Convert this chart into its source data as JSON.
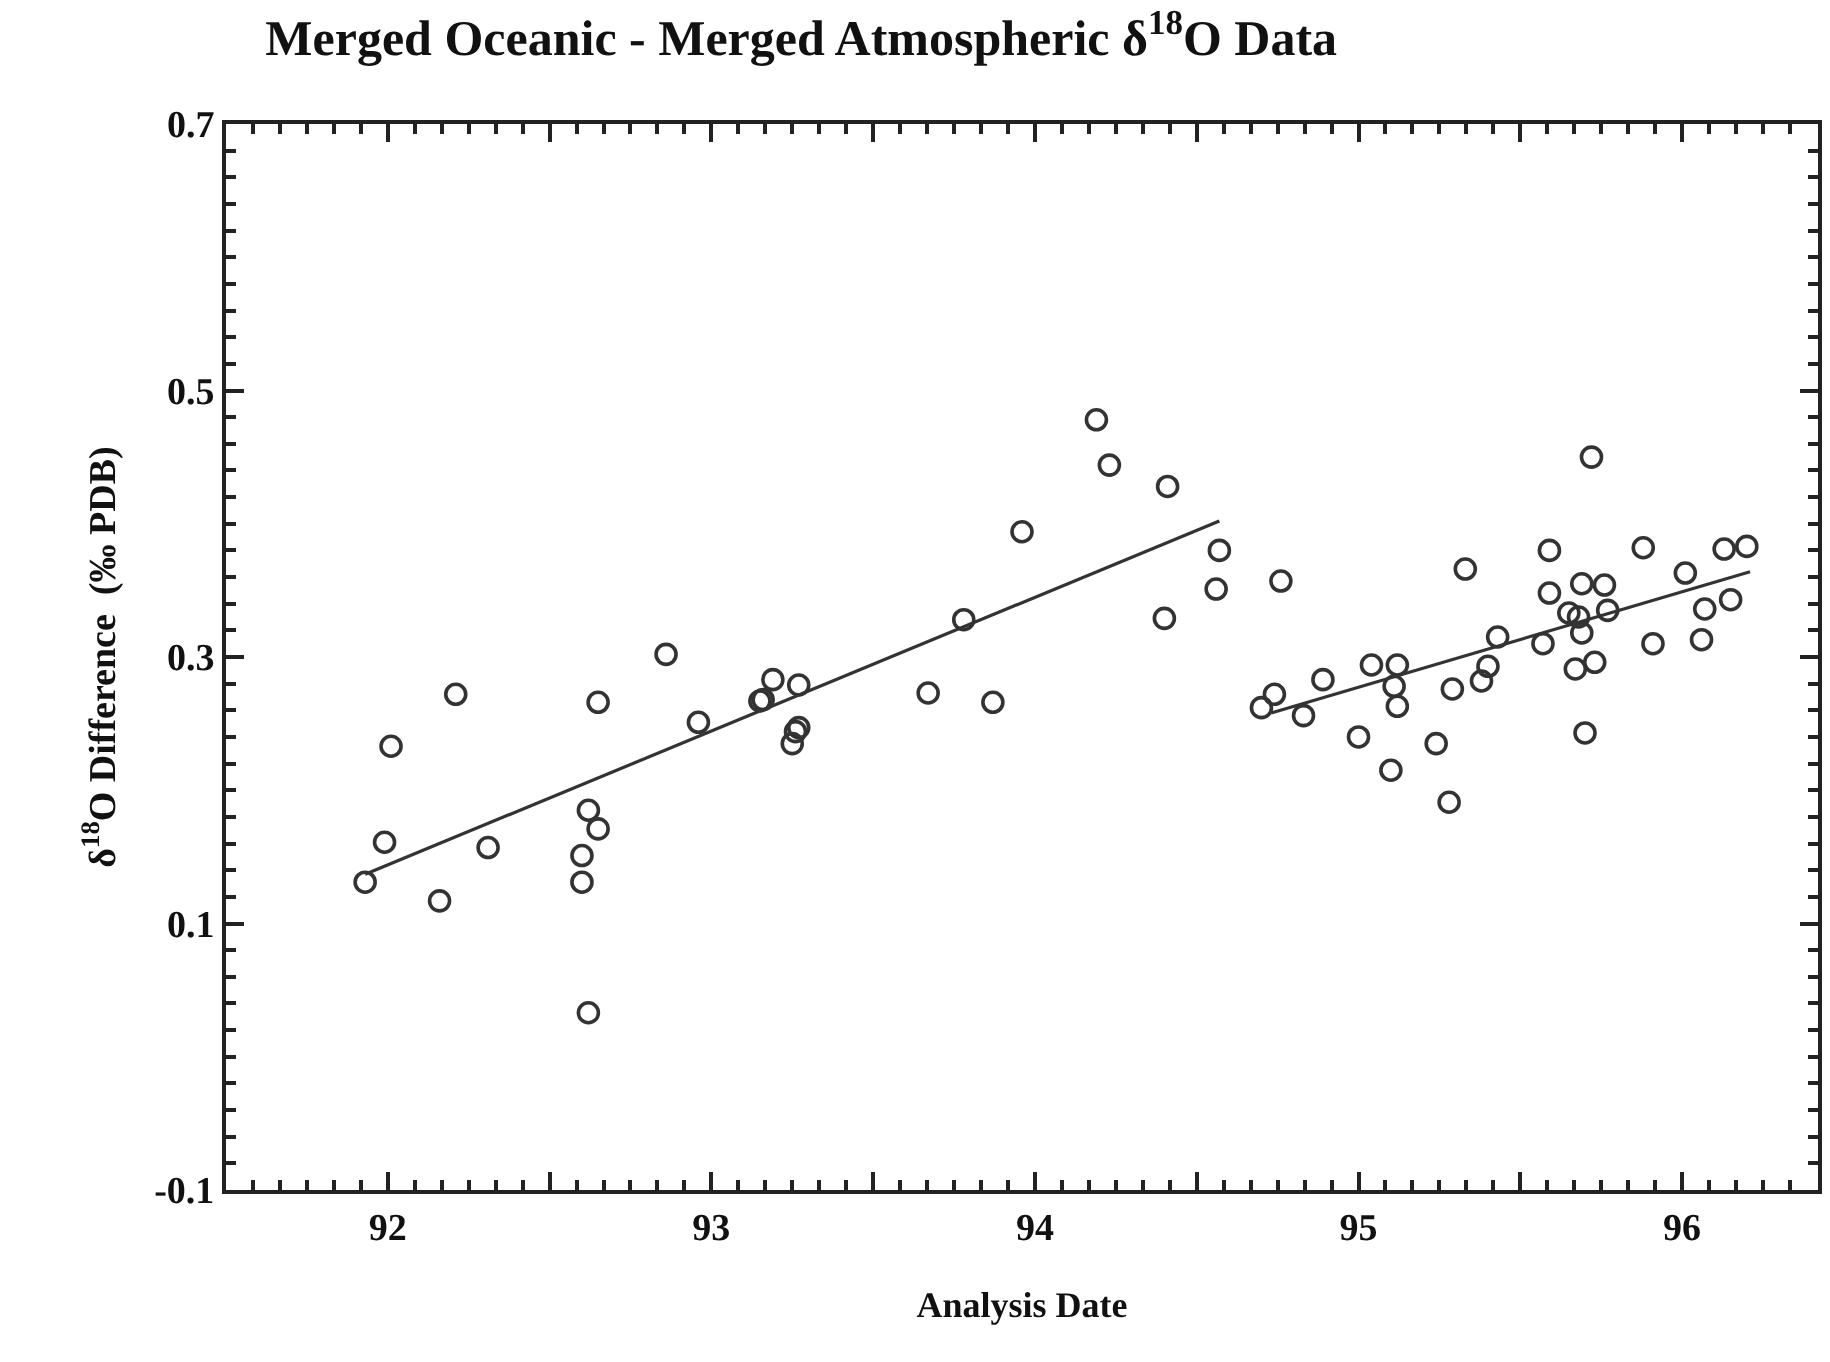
{
  "chart_data": {
    "type": "scatter",
    "title": "Merged Oceanic - Merged Atmospheric δ$^{18}$O Data",
    "xlabel": "Analysis Date",
    "ylabel": "δ$^{18}$O Difference  (‰ PDB)",
    "xlim": [
      92,
      96.92
    ],
    "ylim": [
      -0.1,
      0.7
    ],
    "xticks": [
      {
        "value": 92.5,
        "label": "92"
      },
      {
        "value": 93,
        "label": null
      },
      {
        "value": 93.5,
        "label": "93"
      },
      {
        "value": 94,
        "label": null
      },
      {
        "value": 94.5,
        "label": "94"
      },
      {
        "value": 95,
        "label": null
      },
      {
        "value": 95.5,
        "label": "95"
      },
      {
        "value": 96,
        "label": null
      },
      {
        "value": 96.5,
        "label": "96"
      }
    ],
    "yticks": [
      -0.1,
      0.1,
      0.3,
      0.5,
      0.7
    ],
    "series": [
      {
        "marker": "circle",
        "color": "#333333",
        "x": [
          92.43,
          92.49,
          92.51,
          92.66,
          92.71,
          92.81,
          93.1,
          93.1,
          93.12,
          93.15,
          93.15,
          93.12,
          93.36,
          93.46,
          93.65,
          93.66,
          93.69,
          93.77,
          93.75,
          93.76,
          93.77,
          94.17,
          94.28,
          94.37,
          94.46,
          94.69,
          94.73,
          94.91,
          95.07,
          95.06,
          94.9,
          95.26,
          95.2,
          95.24,
          95.33,
          95.39,
          95.54,
          95.62,
          95.61,
          95.62,
          95.5,
          95.6,
          95.74,
          95.78,
          95.79,
          95.83,
          95.88,
          95.9,
          95.93,
          96.07,
          96.09,
          96.09,
          96.15,
          96.18,
          96.19,
          96.19,
          96.26,
          96.27,
          96.17,
          96.23,
          96.2,
          96.22,
          96.38,
          96.41,
          96.51,
          96.57,
          96.56,
          96.63,
          96.7,
          96.65
        ],
        "values": [
          0.131,
          0.161,
          0.233,
          0.117,
          0.272,
          0.157,
          0.131,
          0.151,
          0.185,
          0.171,
          0.266,
          0.033,
          0.302,
          0.251,
          0.267,
          0.268,
          0.283,
          0.279,
          0.235,
          0.244,
          0.247,
          0.273,
          0.328,
          0.266,
          0.394,
          0.478,
          0.444,
          0.428,
          0.38,
          0.351,
          0.329,
          0.357,
          0.262,
          0.272,
          0.256,
          0.283,
          0.294,
          0.294,
          0.278,
          0.263,
          0.24,
          0.215,
          0.235,
          0.191,
          0.276,
          0.366,
          0.282,
          0.293,
          0.315,
          0.31,
          0.348,
          0.38,
          0.333,
          0.33,
          0.355,
          0.318,
          0.354,
          0.335,
          0.291,
          0.296,
          0.243,
          0.45,
          0.382,
          0.31,
          0.363,
          0.336,
          0.313,
          0.381,
          0.383,
          0.343
        ]
      },
      {
        "type": "line",
        "marker": "none",
        "color": "#333333",
        "x": [
          92.43,
          95.07
        ],
        "values": [
          0.137,
          0.402
        ]
      },
      {
        "type": "line",
        "marker": "none",
        "color": "#333333",
        "x": [
          95.23,
          96.71
        ],
        "values": [
          0.258,
          0.364
        ]
      }
    ]
  }
}
